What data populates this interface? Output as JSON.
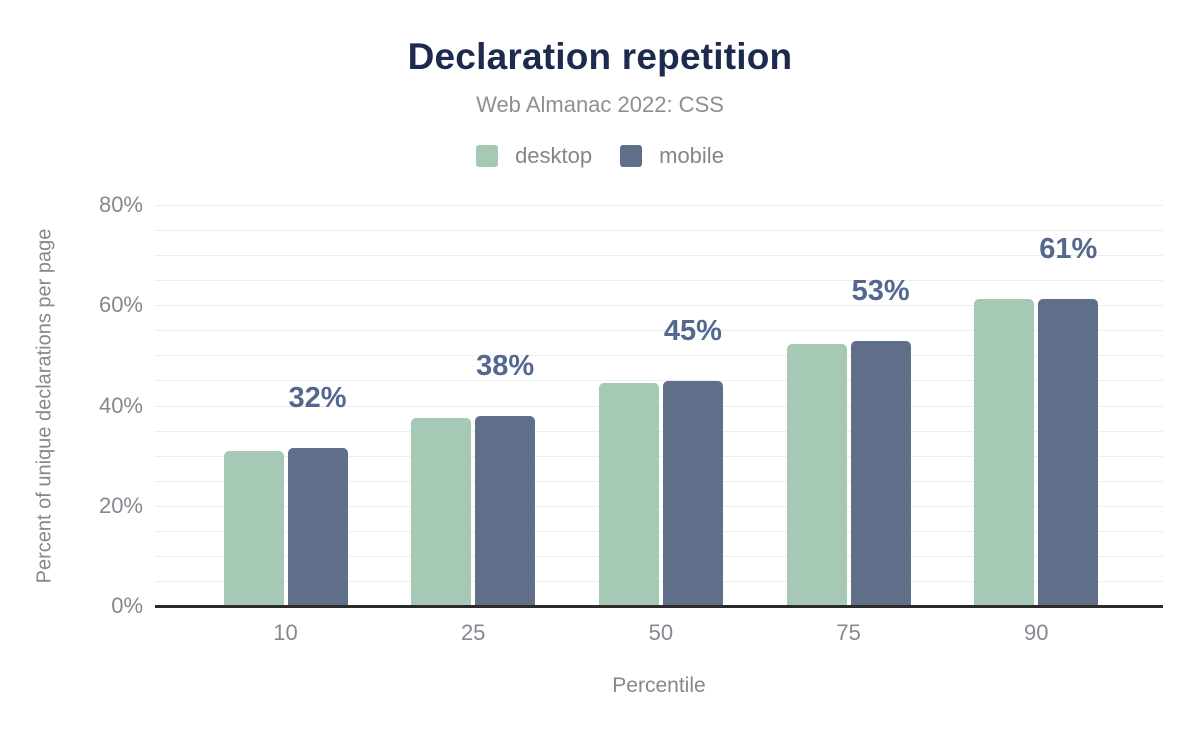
{
  "chart_data": {
    "type": "bar",
    "title": "Declaration repetition",
    "subtitle": "Web Almanac 2022: CSS",
    "categories": [
      "10",
      "25",
      "50",
      "75",
      "90"
    ],
    "series": [
      {
        "name": "desktop",
        "color": "#a6c9b6",
        "values": [
          31.0,
          37.5,
          44.4,
          52.3,
          61.2
        ]
      },
      {
        "name": "mobile",
        "color": "#5f6e89",
        "values": [
          31.6,
          37.9,
          44.9,
          52.8,
          61.3
        ]
      }
    ],
    "data_labels": [
      "32%",
      "38%",
      "45%",
      "53%",
      "61%"
    ],
    "xlabel": "Percentile",
    "ylabel": "Percent of unique declarations per page",
    "ylim": [
      0,
      80
    ],
    "yticks": {
      "values": [
        0,
        20,
        40,
        60,
        80
      ],
      "labels": [
        "0%",
        "20%",
        "40%",
        "60%",
        "80%"
      ]
    },
    "grid": {
      "minor_step": 5,
      "color": "#ededed"
    },
    "legend_position": "top",
    "styles": {
      "title_color": "#1b2a4d",
      "subtitle_color": "#8c9095",
      "legend_text_color": "#82868d",
      "axis_text_color": "#84888f",
      "data_label_color": "#52688e",
      "baseline_color": "#2b2b2b",
      "background": "#ffffff"
    }
  }
}
